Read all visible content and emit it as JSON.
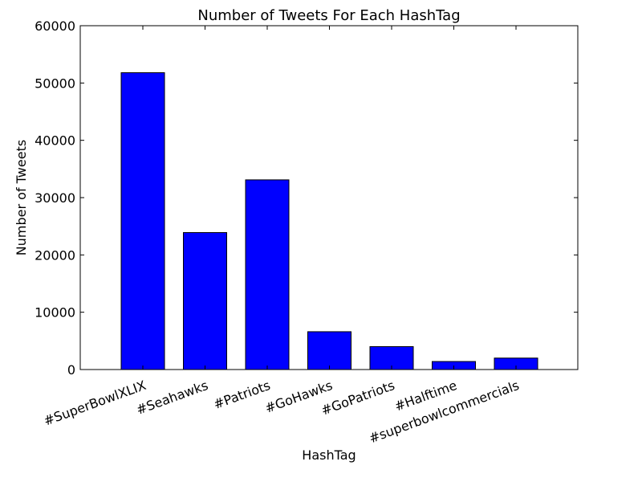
{
  "chart_data": {
    "type": "bar",
    "title": "Number of Tweets For Each HashTag",
    "xlabel": "HashTag",
    "ylabel": "Number of Tweets",
    "categories": [
      "#SuperBowlXLIX",
      "#Seahawks",
      "#Patriots",
      "#GoHawks",
      "#GoPatriots",
      "#Halftime",
      "#superbowlcommercials"
    ],
    "values": [
      51800,
      23900,
      33100,
      6600,
      4000,
      1400,
      2000
    ],
    "ylim": [
      0,
      60000
    ],
    "yticks": [
      "0",
      "10000",
      "20000",
      "30000",
      "40000",
      "50000",
      "60000"
    ],
    "bar_color": "#0000ff",
    "grid": false
  }
}
